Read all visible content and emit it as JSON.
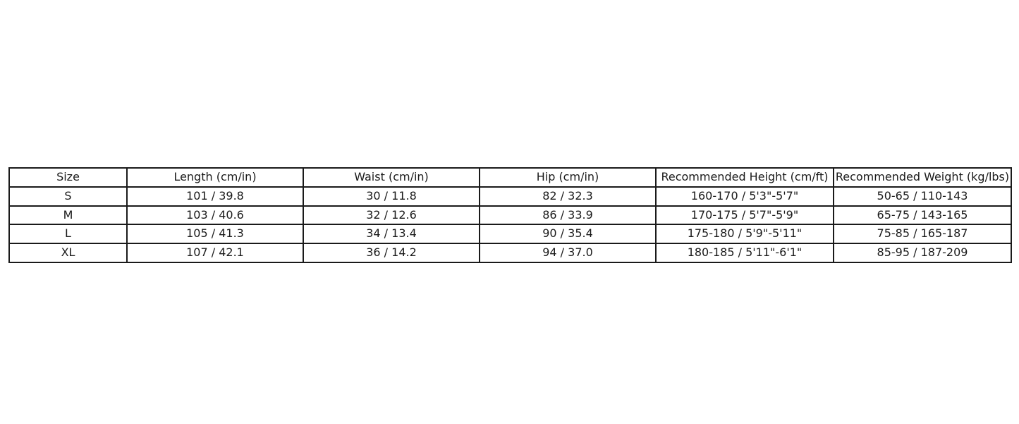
{
  "chart_data": {
    "type": "table",
    "columns": [
      "Size",
      "Length (cm/in)",
      "Waist (cm/in)",
      "Hip (cm/in)",
      "Recommended Height (cm/ft)",
      "Recommended Weight (kg/lbs)"
    ],
    "rows": [
      [
        "S",
        "101 / 39.8",
        "30 / 11.8",
        "82 / 32.3",
        "160-170 / 5'3\"-5'7\"",
        "50-65 / 110-143"
      ],
      [
        "M",
        "103 / 40.6",
        "32 / 12.6",
        "86 / 33.9",
        "170-175 / 5'7\"-5'9\"",
        "65-75 / 143-165"
      ],
      [
        "L",
        "105 / 41.3",
        "34 / 13.4",
        "90 / 35.4",
        "175-180 / 5'9\"-5'11\"",
        "75-85 / 165-187"
      ],
      [
        "XL",
        "107 / 42.1",
        "36 / 14.2",
        "94 / 37.0",
        "180-185 / 5'11\"-6'1\"",
        "85-95 / 187-209"
      ]
    ]
  },
  "colors": {
    "background": "#ffffff",
    "border": "#1a1a1a",
    "text": "#1a1a1a"
  }
}
